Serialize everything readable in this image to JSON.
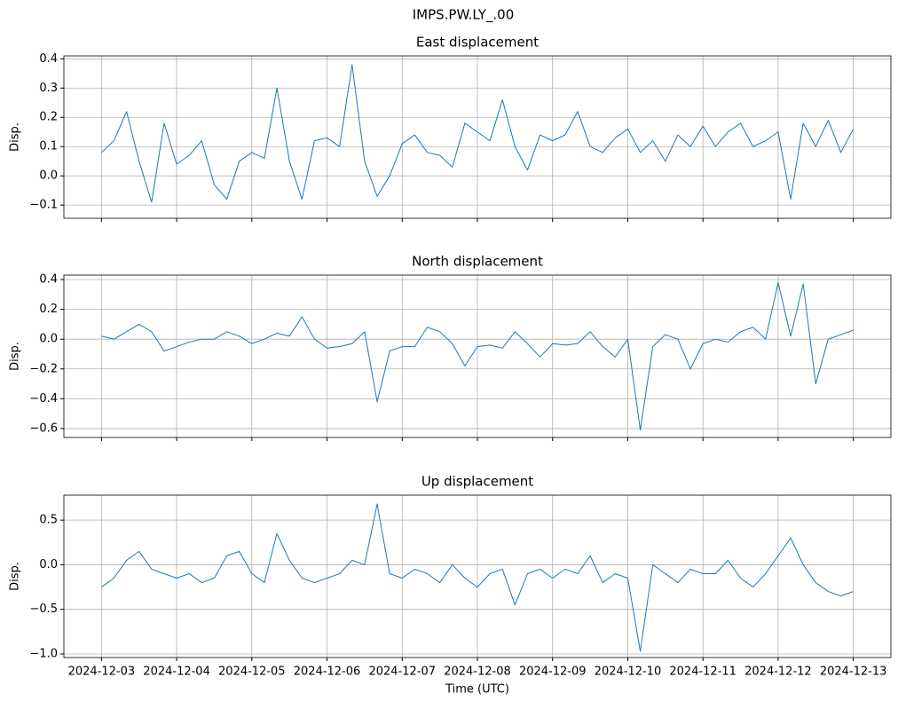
{
  "figure_title": "IMPS.PW.LY_.00",
  "chart_data": [
    {
      "type": "line",
      "title": "East displacement",
      "ylabel": "Disp.",
      "color": "#1f77b4",
      "grid": true,
      "show_xtick_labels": false,
      "xlim": [
        "2024-12-02 12:00",
        "2024-12-13 12:00"
      ],
      "xticks": [
        "2024-12-03",
        "2024-12-04",
        "2024-12-05",
        "2024-12-06",
        "2024-12-07",
        "2024-12-08",
        "2024-12-09",
        "2024-12-10",
        "2024-12-11",
        "2024-12-12",
        "2024-12-13"
      ],
      "ylim": [
        -0.145,
        0.41
      ],
      "yticks": [
        {
          "value": -0.1,
          "label": "−0.1"
        },
        {
          "value": 0,
          "label": "0.0"
        },
        0.1,
        0.2,
        0.3,
        0.4
      ],
      "x": [
        "2024-12-03 00:00",
        "2024-12-03 04:00",
        "2024-12-03 08:00",
        "2024-12-03 12:00",
        "2024-12-03 16:00",
        "2024-12-03 20:00",
        "2024-12-04 00:00",
        "2024-12-04 04:00",
        "2024-12-04 08:00",
        "2024-12-04 12:00",
        "2024-12-04 16:00",
        "2024-12-04 20:00",
        "2024-12-05 00:00",
        "2024-12-05 04:00",
        "2024-12-05 08:00",
        "2024-12-05 12:00",
        "2024-12-05 16:00",
        "2024-12-05 20:00",
        "2024-12-06 00:00",
        "2024-12-06 04:00",
        "2024-12-06 08:00",
        "2024-12-06 12:00",
        "2024-12-06 16:00",
        "2024-12-06 20:00",
        "2024-12-07 00:00",
        "2024-12-07 04:00",
        "2024-12-07 08:00",
        "2024-12-07 12:00",
        "2024-12-07 16:00",
        "2024-12-07 20:00",
        "2024-12-08 00:00",
        "2024-12-08 04:00",
        "2024-12-08 08:00",
        "2024-12-08 12:00",
        "2024-12-08 16:00",
        "2024-12-08 20:00",
        "2024-12-09 00:00",
        "2024-12-09 04:00",
        "2024-12-09 08:00",
        "2024-12-09 12:00",
        "2024-12-09 16:00",
        "2024-12-09 20:00",
        "2024-12-10 00:00",
        "2024-12-10 04:00",
        "2024-12-10 08:00",
        "2024-12-10 12:00",
        "2024-12-10 16:00",
        "2024-12-10 20:00",
        "2024-12-11 00:00",
        "2024-12-11 04:00",
        "2024-12-11 08:00",
        "2024-12-11 12:00",
        "2024-12-11 16:00",
        "2024-12-11 20:00",
        "2024-12-12 00:00",
        "2024-12-12 04:00",
        "2024-12-12 08:00",
        "2024-12-12 12:00",
        "2024-12-12 16:00",
        "2024-12-12 20:00",
        "2024-12-13 00:00"
      ],
      "values": [
        0.08,
        0.12,
        0.22,
        0.05,
        -0.09,
        0.18,
        0.04,
        0.07,
        0.12,
        -0.03,
        -0.08,
        0.05,
        0.08,
        0.06,
        0.3,
        0.05,
        -0.08,
        0.12,
        0.13,
        0.1,
        0.38,
        0.05,
        -0.07,
        0.0,
        0.11,
        0.14,
        0.08,
        0.07,
        0.03,
        0.18,
        0.15,
        0.12,
        0.26,
        0.1,
        0.02,
        0.14,
        0.12,
        0.14,
        0.22,
        0.1,
        0.08,
        0.13,
        0.16,
        0.08,
        0.12,
        0.05,
        0.14,
        0.1,
        0.17,
        0.1,
        0.15,
        0.18,
        0.1,
        0.12,
        0.15,
        -0.08,
        0.18,
        0.1,
        0.19,
        0.08,
        0.16
      ]
    },
    {
      "type": "line",
      "title": "North displacement",
      "ylabel": "Disp.",
      "color": "#1f77b4",
      "grid": true,
      "show_xtick_labels": false,
      "xlim": [
        "2024-12-02 12:00",
        "2024-12-13 12:00"
      ],
      "xticks": [
        "2024-12-03",
        "2024-12-04",
        "2024-12-05",
        "2024-12-06",
        "2024-12-07",
        "2024-12-08",
        "2024-12-09",
        "2024-12-10",
        "2024-12-11",
        "2024-12-12",
        "2024-12-13"
      ],
      "ylim": [
        -0.66,
        0.43
      ],
      "yticks": [
        {
          "value": -0.6,
          "label": "−0.6"
        },
        {
          "value": -0.4,
          "label": "−0.4"
        },
        {
          "value": -0.2,
          "label": "−0.2"
        },
        {
          "value": 0,
          "label": "0.0"
        },
        0.2,
        0.4
      ],
      "x": [
        "2024-12-03 00:00",
        "2024-12-03 04:00",
        "2024-12-03 08:00",
        "2024-12-03 12:00",
        "2024-12-03 16:00",
        "2024-12-03 20:00",
        "2024-12-04 00:00",
        "2024-12-04 04:00",
        "2024-12-04 08:00",
        "2024-12-04 12:00",
        "2024-12-04 16:00",
        "2024-12-04 20:00",
        "2024-12-05 00:00",
        "2024-12-05 04:00",
        "2024-12-05 08:00",
        "2024-12-05 12:00",
        "2024-12-05 16:00",
        "2024-12-05 20:00",
        "2024-12-06 00:00",
        "2024-12-06 04:00",
        "2024-12-06 08:00",
        "2024-12-06 12:00",
        "2024-12-06 16:00",
        "2024-12-06 20:00",
        "2024-12-07 00:00",
        "2024-12-07 04:00",
        "2024-12-07 08:00",
        "2024-12-07 12:00",
        "2024-12-07 16:00",
        "2024-12-07 20:00",
        "2024-12-08 00:00",
        "2024-12-08 04:00",
        "2024-12-08 08:00",
        "2024-12-08 12:00",
        "2024-12-08 16:00",
        "2024-12-08 20:00",
        "2024-12-09 00:00",
        "2024-12-09 04:00",
        "2024-12-09 08:00",
        "2024-12-09 12:00",
        "2024-12-09 16:00",
        "2024-12-09 20:00",
        "2024-12-10 00:00",
        "2024-12-10 04:00",
        "2024-12-10 08:00",
        "2024-12-10 12:00",
        "2024-12-10 16:00",
        "2024-12-10 20:00",
        "2024-12-11 00:00",
        "2024-12-11 04:00",
        "2024-12-11 08:00",
        "2024-12-11 12:00",
        "2024-12-11 16:00",
        "2024-12-11 20:00",
        "2024-12-12 00:00",
        "2024-12-12 04:00",
        "2024-12-12 08:00",
        "2024-12-12 12:00",
        "2024-12-12 16:00",
        "2024-12-12 20:00",
        "2024-12-13 00:00"
      ],
      "values": [
        0.02,
        0.0,
        0.05,
        0.1,
        0.05,
        -0.08,
        -0.05,
        -0.02,
        0.0,
        0.0,
        0.05,
        0.02,
        -0.03,
        0.0,
        0.04,
        0.02,
        0.15,
        0.0,
        -0.06,
        -0.05,
        -0.03,
        0.05,
        -0.42,
        -0.08,
        -0.05,
        -0.05,
        0.08,
        0.05,
        -0.03,
        -0.18,
        -0.05,
        -0.04,
        -0.06,
        0.05,
        -0.03,
        -0.12,
        -0.03,
        -0.04,
        -0.03,
        0.05,
        -0.05,
        -0.12,
        0.0,
        -0.61,
        -0.05,
        0.03,
        0.0,
        -0.2,
        -0.03,
        0.0,
        -0.02,
        0.05,
        0.08,
        0.0,
        0.38,
        0.02,
        0.37,
        -0.3,
        0.0,
        0.03,
        0.06
      ]
    },
    {
      "type": "line",
      "title": "Up displacement",
      "ylabel": "Disp.",
      "xlabel": "Time (UTC)",
      "color": "#1f77b4",
      "grid": true,
      "show_xtick_labels": true,
      "xlim": [
        "2024-12-02 12:00",
        "2024-12-13 12:00"
      ],
      "xticks": [
        "2024-12-03",
        "2024-12-04",
        "2024-12-05",
        "2024-12-06",
        "2024-12-07",
        "2024-12-08",
        "2024-12-09",
        "2024-12-10",
        "2024-12-11",
        "2024-12-12",
        "2024-12-13"
      ],
      "ylim": [
        -1.04,
        0.78
      ],
      "yticks": [
        {
          "value": -1,
          "label": "−1.0"
        },
        {
          "value": -0.5,
          "label": "−0.5"
        },
        {
          "value": 0,
          "label": "0.0"
        },
        0.5
      ],
      "x": [
        "2024-12-03 00:00",
        "2024-12-03 04:00",
        "2024-12-03 08:00",
        "2024-12-03 12:00",
        "2024-12-03 16:00",
        "2024-12-03 20:00",
        "2024-12-04 00:00",
        "2024-12-04 04:00",
        "2024-12-04 08:00",
        "2024-12-04 12:00",
        "2024-12-04 16:00",
        "2024-12-04 20:00",
        "2024-12-05 00:00",
        "2024-12-05 04:00",
        "2024-12-05 08:00",
        "2024-12-05 12:00",
        "2024-12-05 16:00",
        "2024-12-05 20:00",
        "2024-12-06 00:00",
        "2024-12-06 04:00",
        "2024-12-06 08:00",
        "2024-12-06 12:00",
        "2024-12-06 16:00",
        "2024-12-06 20:00",
        "2024-12-07 00:00",
        "2024-12-07 04:00",
        "2024-12-07 08:00",
        "2024-12-07 12:00",
        "2024-12-07 16:00",
        "2024-12-07 20:00",
        "2024-12-08 00:00",
        "2024-12-08 04:00",
        "2024-12-08 08:00",
        "2024-12-08 12:00",
        "2024-12-08 16:00",
        "2024-12-08 20:00",
        "2024-12-09 00:00",
        "2024-12-09 04:00",
        "2024-12-09 08:00",
        "2024-12-09 12:00",
        "2024-12-09 16:00",
        "2024-12-09 20:00",
        "2024-12-10 00:00",
        "2024-12-10 04:00",
        "2024-12-10 08:00",
        "2024-12-10 12:00",
        "2024-12-10 16:00",
        "2024-12-10 20:00",
        "2024-12-11 00:00",
        "2024-12-11 04:00",
        "2024-12-11 08:00",
        "2024-12-11 12:00",
        "2024-12-11 16:00",
        "2024-12-11 20:00",
        "2024-12-12 00:00",
        "2024-12-12 04:00",
        "2024-12-12 08:00",
        "2024-12-12 12:00",
        "2024-12-12 16:00",
        "2024-12-12 20:00",
        "2024-12-13 00:00"
      ],
      "values": [
        -0.25,
        -0.15,
        0.05,
        0.15,
        -0.05,
        -0.1,
        -0.15,
        -0.1,
        -0.2,
        -0.15,
        0.1,
        0.15,
        -0.1,
        -0.2,
        0.35,
        0.05,
        -0.15,
        -0.2,
        -0.15,
        -0.1,
        0.05,
        0.0,
        0.68,
        -0.1,
        -0.15,
        -0.05,
        -0.1,
        -0.2,
        0.0,
        -0.15,
        -0.25,
        -0.1,
        -0.05,
        -0.45,
        -0.1,
        -0.05,
        -0.15,
        -0.05,
        -0.1,
        0.1,
        -0.2,
        -0.1,
        -0.15,
        -0.97,
        0.0,
        -0.1,
        -0.2,
        -0.05,
        -0.1,
        -0.1,
        0.05,
        -0.15,
        -0.25,
        -0.1,
        0.1,
        0.3,
        0.0,
        -0.2,
        -0.3,
        -0.35,
        -0.3
      ]
    }
  ]
}
